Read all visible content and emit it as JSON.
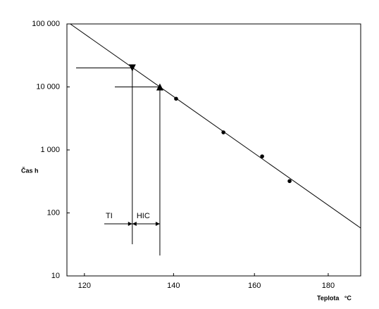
{
  "chart_data": {
    "type": "line",
    "x_label": "Teplota   °C",
    "y_label": "Čas   h",
    "xscale": "reciprocal-kelvin",
    "yscale": "log",
    "xlim": [
      116.3,
      189.4
    ],
    "ylim": [
      10,
      100000
    ],
    "xticks": [
      120,
      140,
      160,
      180
    ],
    "yticks": [
      10,
      100,
      {
        "value": 1000,
        "label": "1 000"
      },
      {
        "value": 10000,
        "label": "10 000"
      },
      {
        "value": 100000,
        "label": "100 000"
      }
    ],
    "color": "#000000",
    "line": {
      "x": [
        117,
        189.4
      ],
      "y": [
        100000,
        57.5
      ]
    },
    "points": {
      "x": [
        140.6,
        152.1,
        162,
        169.3
      ],
      "y": [
        6500,
        1900,
        790,
        320
      ]
    },
    "markers": [
      {
        "x": 130.5,
        "y": 20000,
        "shape": "down",
        "label": "TI"
      },
      {
        "x": 136.8,
        "y": 10000,
        "shape": "up",
        "label": "HIC"
      }
    ]
  }
}
